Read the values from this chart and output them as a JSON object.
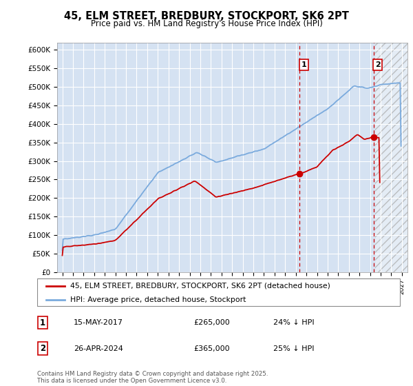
{
  "title": "45, ELM STREET, BREDBURY, STOCKPORT, SK6 2PT",
  "subtitle": "Price paid vs. HM Land Registry's House Price Index (HPI)",
  "hpi_label": "HPI: Average price, detached house, Stockport",
  "property_label": "45, ELM STREET, BREDBURY, STOCKPORT, SK6 2PT (detached house)",
  "hpi_color": "#7aaadd",
  "property_color": "#cc0000",
  "annotation1_date": "15-MAY-2017",
  "annotation1_price": "£265,000",
  "annotation1_pct": "24% ↓ HPI",
  "annotation2_date": "26-APR-2024",
  "annotation2_price": "£365,000",
  "annotation2_pct": "25% ↓ HPI",
  "vline_color": "#cc0000",
  "vline_x1": 2017.37,
  "vline_x2": 2024.32,
  "hatch_start": 2024.5,
  "footer": "Contains HM Land Registry data © Crown copyright and database right 2025.\nThis data is licensed under the Open Government Licence v3.0.",
  "ylim": [
    0,
    620000
  ],
  "xlim": [
    1994.5,
    2027.5
  ],
  "yticks": [
    0,
    50000,
    100000,
    150000,
    200000,
    250000,
    300000,
    350000,
    400000,
    450000,
    500000,
    550000,
    600000
  ],
  "background_color": "#ffffff",
  "plot_background": "#dde8f5",
  "grid_color": "#ffffff"
}
